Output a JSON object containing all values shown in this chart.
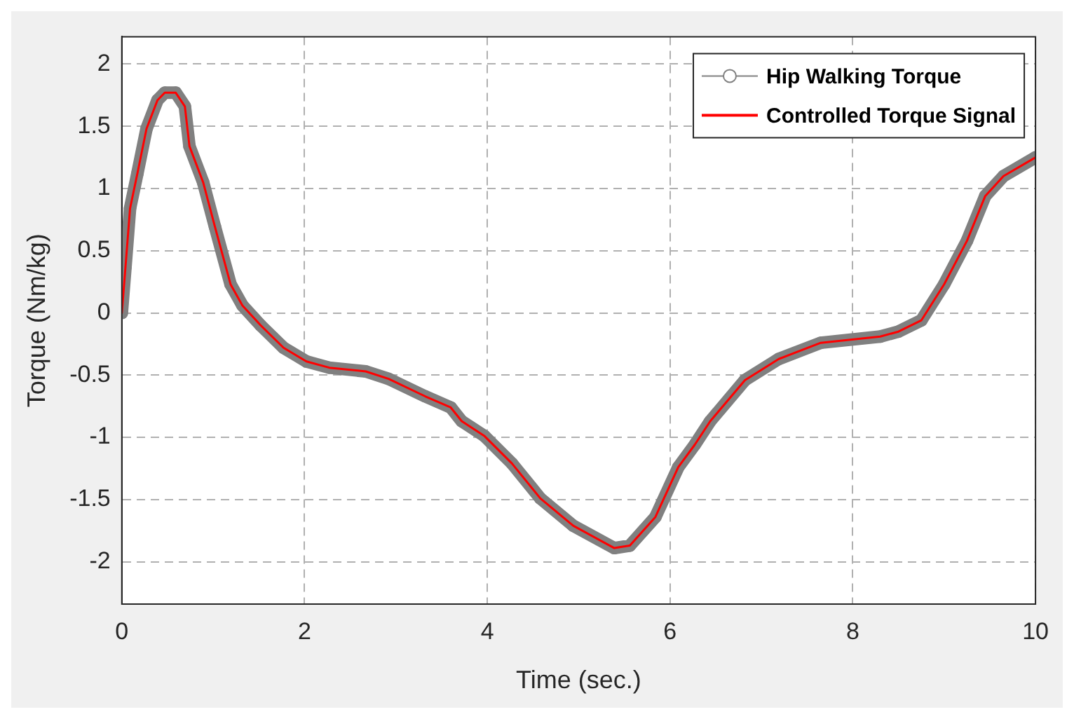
{
  "chart_data": {
    "type": "line",
    "xlabel": "Time (sec.)",
    "ylabel": "Torque (Nm/kg)",
    "x": [
      0,
      0.04,
      0.09,
      0.17,
      0.27,
      0.39,
      0.47,
      0.59,
      0.69,
      0.74,
      0.89,
      1.02,
      1.19,
      1.32,
      1.52,
      1.77,
      2.02,
      2.27,
      2.67,
      2.92,
      3.32,
      3.6,
      3.72,
      3.97,
      4.27,
      4.58,
      4.94,
      5.39,
      5.56,
      5.84,
      6.09,
      6.27,
      6.44,
      6.82,
      7.19,
      7.65,
      8.3,
      8.5,
      8.75,
      9.0,
      9.25,
      9.45,
      9.65,
      10.0
    ],
    "series": [
      {
        "name": "Hip Walking Torque",
        "color": "#808080",
        "marker": "circle",
        "values": [
          0,
          0.37,
          0.84,
          1.12,
          1.48,
          1.71,
          1.77,
          1.77,
          1.66,
          1.34,
          1.05,
          0.69,
          0.23,
          0.06,
          -0.1,
          -0.28,
          -0.39,
          -0.44,
          -0.47,
          -0.53,
          -0.67,
          -0.76,
          -0.87,
          -0.99,
          -1.21,
          -1.49,
          -1.71,
          -1.89,
          -1.87,
          -1.64,
          -1.24,
          -1.06,
          -0.87,
          -0.54,
          -0.37,
          -0.24,
          -0.19,
          -0.15,
          -0.06,
          0.23,
          0.58,
          0.94,
          1.1,
          1.25
        ]
      },
      {
        "name": "Controlled Torque Signal",
        "color": "#ff0000",
        "marker": "none",
        "values": [
          0,
          0.37,
          0.84,
          1.12,
          1.48,
          1.71,
          1.77,
          1.77,
          1.66,
          1.34,
          1.05,
          0.69,
          0.23,
          0.06,
          -0.1,
          -0.28,
          -0.39,
          -0.44,
          -0.47,
          -0.53,
          -0.67,
          -0.76,
          -0.87,
          -0.99,
          -1.21,
          -1.49,
          -1.71,
          -1.89,
          -1.87,
          -1.64,
          -1.24,
          -1.06,
          -0.87,
          -0.54,
          -0.37,
          -0.24,
          -0.19,
          -0.15,
          -0.06,
          0.23,
          0.58,
          0.94,
          1.1,
          1.25
        ]
      }
    ],
    "xlim": [
      0,
      10
    ],
    "xticks": [
      0,
      2,
      4,
      6,
      8,
      10
    ],
    "ylim": [
      -2.34,
      2.22
    ],
    "yticks": [
      -2,
      -1.5,
      -1,
      -0.5,
      0,
      0.5,
      1,
      1.5,
      2
    ],
    "grid": true,
    "legend": "top right",
    "line_style": "solid"
  }
}
